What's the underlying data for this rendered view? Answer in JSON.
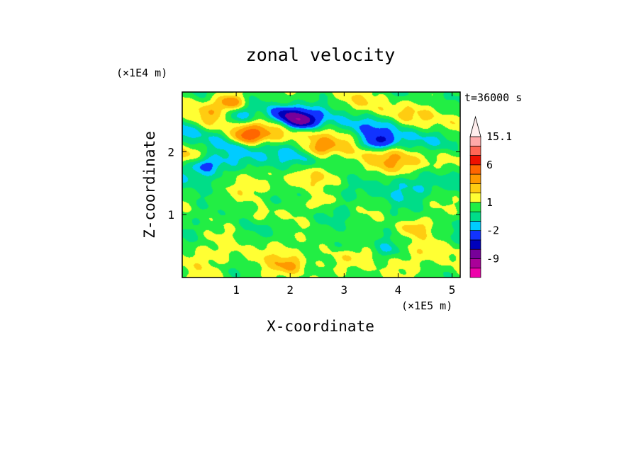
{
  "chart_data": {
    "type": "heatmap",
    "title": "zonal velocity",
    "time_label": "t=36000 s",
    "xlabel": "X-coordinate",
    "ylabel": "Z-coordinate",
    "x_unit": "(×1E5 m)",
    "y_unit": "(×1E4 m)",
    "xlim": [
      0,
      5.15
    ],
    "ylim": [
      0,
      2.95
    ],
    "x_ticks": [
      1,
      2,
      3,
      4,
      5
    ],
    "y_ticks": [
      1,
      2
    ],
    "colorbar": {
      "labels": [
        "15.1",
        "6",
        "1",
        "-2",
        "-9"
      ],
      "label_values": [
        15.1,
        6,
        1,
        -2,
        -9
      ],
      "range": [
        -16,
        20
      ],
      "levels": [
        {
          "from": -16,
          "to": -12,
          "color": "#ee00aa"
        },
        {
          "from": -12,
          "to": -9,
          "color": "#aa0099"
        },
        {
          "from": -9,
          "to": -6,
          "color": "#770099"
        },
        {
          "from": -6,
          "to": -4,
          "color": "#0000bb"
        },
        {
          "from": -4,
          "to": -2,
          "color": "#1133ff"
        },
        {
          "from": -2,
          "to": -1,
          "color": "#00ccff"
        },
        {
          "from": -1,
          "to": 0,
          "color": "#00dd88"
        },
        {
          "from": 0,
          "to": 1,
          "color": "#22ee44"
        },
        {
          "from": 1,
          "to": 2,
          "color": "#ffff33"
        },
        {
          "from": 2,
          "to": 3,
          "color": "#ffcc11"
        },
        {
          "from": 3,
          "to": 4.5,
          "color": "#ff9900"
        },
        {
          "from": 4.5,
          "to": 6,
          "color": "#ff6600"
        },
        {
          "from": 6,
          "to": 8,
          "color": "#ee1100"
        },
        {
          "from": 8,
          "to": 11,
          "color": "#ff6655"
        },
        {
          "from": 11,
          "to": 15.1,
          "color": "#ffaaaa"
        },
        {
          "from": 15.1,
          "to": 20,
          "color": "#ffeeee"
        }
      ]
    },
    "field_features": [
      {
        "x": 2.2,
        "z": 2.5,
        "value": -8
      },
      {
        "x": 1.9,
        "z": 2.6,
        "value": -5
      },
      {
        "x": 3.6,
        "z": 2.15,
        "value": -4
      },
      {
        "x": 1.0,
        "z": 2.55,
        "value": -3
      },
      {
        "x": 0.4,
        "z": 1.8,
        "value": -3
      },
      {
        "x": 1.2,
        "z": 2.25,
        "value": 5
      },
      {
        "x": 0.9,
        "z": 2.8,
        "value": 4
      },
      {
        "x": 2.5,
        "z": 2.05,
        "value": 3
      },
      {
        "x": 2.6,
        "z": 1.2,
        "value": 2
      },
      {
        "x": 4.3,
        "z": 0.8,
        "value": 2
      },
      {
        "x": 3.8,
        "z": 0.45,
        "value": -1.5
      },
      {
        "x": 3.0,
        "z": 0.5,
        "value": -1.5
      },
      {
        "x": 2.0,
        "z": 0.2,
        "value": 2
      },
      {
        "x": 1.5,
        "z": 1.0,
        "value": 1.5
      }
    ]
  }
}
